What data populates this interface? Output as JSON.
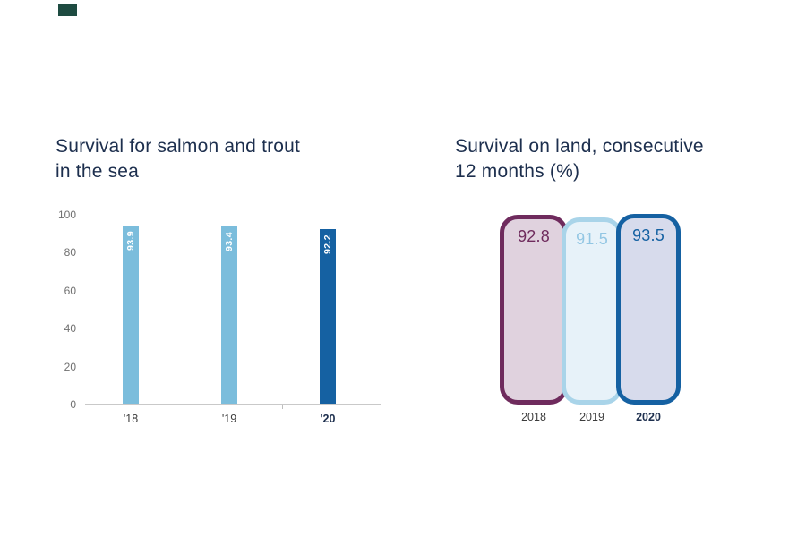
{
  "brand_mark_color": "#1e4b41",
  "left_chart": {
    "title_line1": "Survival for salmon and trout",
    "title_line2": "in the sea"
  },
  "right_chart": {
    "title_line1": "Survival on land, consecutive",
    "title_line2": "12 months (%)"
  },
  "chart_data": [
    {
      "type": "bar",
      "title": "Survival for salmon and trout in the sea",
      "categories": [
        "'18",
        "'19",
        "'20"
      ],
      "values": [
        93.9,
        93.4,
        92.2
      ],
      "value_labels": [
        "93.9",
        "93.4",
        "92.2"
      ],
      "value_label_color": "#ffffff",
      "xlabel": "",
      "ylabel": "",
      "ylim": [
        0,
        100
      ],
      "yticks": [
        0,
        20,
        40,
        60,
        80,
        100
      ],
      "grid": false,
      "legend": "none",
      "bar_colors": [
        "#7bbddc",
        "#7bbddc",
        "#1561a2"
      ],
      "emphasized_category": "'20"
    },
    {
      "type": "bar",
      "title": "Survival on land, consecutive 12 months (%)",
      "categories": [
        "2018",
        "2019",
        "2020"
      ],
      "values": [
        92.8,
        91.5,
        93.5
      ],
      "value_labels": [
        "92.8",
        "91.5",
        "93.5"
      ],
      "style": "rounded-outline-pills",
      "legend": "none",
      "pill_styles": [
        {
          "border": "#6f2b5d",
          "fill": "#e0d2de",
          "text": "#6f2b5d"
        },
        {
          "border": "#a9d4e9",
          "fill": "#e7f2f9",
          "text": "#92c6e3"
        },
        {
          "border": "#1561a2",
          "fill": "#d7dbec",
          "text": "#1561a2"
        }
      ],
      "emphasized_category": "2020"
    }
  ]
}
